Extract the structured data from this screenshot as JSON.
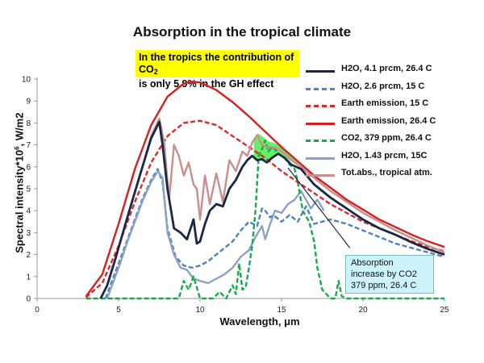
{
  "title": "Absorption in the tropical climate",
  "callout": {
    "text_main": "In the tropics the contribution of CO",
    "text_sub": "2",
    "text_rest": "is only 5.9% in the GH effect"
  },
  "axes": {
    "ylabel_main": "Spectral intensity*10",
    "ylabel_sup": "6",
    "ylabel_rest": ", W/m2",
    "xlabel": "Wavelength, μm"
  },
  "annotation": {
    "lines": [
      "Absorption",
      "increase by CO2",
      "379 ppm, 26.4 C"
    ]
  },
  "chart_data": {
    "type": "line",
    "xlim": [
      0,
      25
    ],
    "ylim": [
      0,
      10
    ],
    "xticks": [
      0,
      5,
      10,
      15,
      20,
      25
    ],
    "yticks": [
      0,
      1,
      2,
      3,
      4,
      5,
      6,
      7,
      8,
      9,
      10
    ],
    "grid": false,
    "legend_position": "right",
    "series": [
      {
        "name": "H2O, 4.1 prcm, 26.4 C",
        "color": "#1a2746",
        "style": "solid",
        "x": [
          3.9,
          4.3,
          4.8,
          5.5,
          6.3,
          7.0,
          7.5,
          7.7,
          8.0,
          8.4,
          8.8,
          9.2,
          9.6,
          9.8,
          10.0,
          10.3,
          10.6,
          11.0,
          11.4,
          11.8,
          12.2,
          12.6,
          12.9,
          13.2,
          13.5,
          13.8,
          14.1,
          14.4,
          14.8,
          15.2,
          15.6,
          16.2,
          17.0,
          18.0,
          19.0,
          20.0,
          21.0,
          22.0,
          23.0,
          24.0,
          25.0
        ],
        "y": [
          0.0,
          0.6,
          1.8,
          3.6,
          5.6,
          7.3,
          8.05,
          7.0,
          5.0,
          3.2,
          3.0,
          2.7,
          3.6,
          2.5,
          2.6,
          3.4,
          4.0,
          4.3,
          4.2,
          5.0,
          5.4,
          6.0,
          6.3,
          6.5,
          6.3,
          6.35,
          6.2,
          6.4,
          6.6,
          6.4,
          6.1,
          5.9,
          5.2,
          4.6,
          4.1,
          3.6,
          3.2,
          2.9,
          2.55,
          2.25,
          2.0
        ]
      },
      {
        "name": "H2O, 2.6 prcm, 15 C",
        "color": "#4f81bd",
        "style": "dashed",
        "x": [
          4.2,
          4.6,
          5.0,
          5.5,
          6.0,
          6.5,
          7.0,
          7.4,
          7.7,
          8.0,
          8.5,
          9.0,
          9.5,
          10.0,
          10.5,
          11.0,
          11.5,
          12.0,
          12.5,
          13.0,
          13.5,
          13.8,
          14.0,
          14.3,
          14.5,
          15.0,
          15.5,
          16.0,
          16.5,
          17.0,
          18.0,
          19.0,
          20.0,
          21.0,
          22.0,
          23.0,
          24.0,
          25.0
        ],
        "y": [
          0.0,
          0.8,
          1.6,
          2.6,
          3.6,
          4.6,
          5.4,
          5.9,
          5.3,
          3.2,
          1.9,
          1.5,
          1.4,
          1.5,
          1.7,
          2.0,
          2.3,
          2.6,
          3.1,
          3.5,
          3.3,
          4.1,
          4.0,
          3.7,
          3.8,
          3.5,
          3.8,
          3.5,
          4.2,
          3.4,
          3.6,
          3.4,
          3.1,
          2.8,
          2.5,
          2.3,
          2.1,
          1.9
        ]
      },
      {
        "name": "Earth emission, 15 C",
        "color": "#d92b2b",
        "style": "dashed",
        "x": [
          3.0,
          4.0,
          5.0,
          6.0,
          7.0,
          8.0,
          9.0,
          10.0,
          11.0,
          12.0,
          13.0,
          14.0,
          15.0,
          16.0,
          17.0,
          18.0,
          19.0,
          20.0,
          21.0,
          22.0,
          23.0,
          24.0,
          25.0
        ],
        "y": [
          0.05,
          0.7,
          2.4,
          4.4,
          6.2,
          7.4,
          8.0,
          8.1,
          7.9,
          7.4,
          6.9,
          6.4,
          5.8,
          5.3,
          4.8,
          4.3,
          3.9,
          3.5,
          3.2,
          2.9,
          2.6,
          2.35,
          2.15
        ]
      },
      {
        "name": "Earth emission, 26.4 C",
        "color": "#d42020",
        "style": "solid",
        "x": [
          3.0,
          4.0,
          5.0,
          6.0,
          7.0,
          8.0,
          9.0,
          9.5,
          10.0,
          11.0,
          12.0,
          13.0,
          14.0,
          15.0,
          16.0,
          17.0,
          18.0,
          19.0,
          20.0,
          21.0,
          22.0,
          23.0,
          24.0,
          25.0
        ],
        "y": [
          0.1,
          1.1,
          3.4,
          5.9,
          7.9,
          9.2,
          9.8,
          9.88,
          9.85,
          9.5,
          8.95,
          8.3,
          7.6,
          6.9,
          6.25,
          5.6,
          5.05,
          4.5,
          4.05,
          3.6,
          3.25,
          2.9,
          2.6,
          2.35
        ]
      },
      {
        "name": "CO2, 379 ppm, 26.4 C",
        "color": "#1aa84a",
        "style": "dashed",
        "x": [
          3.0,
          8.7,
          9.0,
          9.3,
          9.6,
          10.0,
          10.4,
          10.8,
          11.2,
          11.6,
          12.0,
          12.2,
          12.4,
          12.6,
          12.8,
          13.0,
          13.2,
          13.4,
          13.6,
          13.8,
          14.0,
          14.2,
          14.4,
          14.6,
          14.8,
          15.0,
          15.2,
          15.5,
          15.8,
          16.0,
          16.3,
          16.7,
          17.0,
          17.2,
          17.5,
          18.0,
          18.3,
          18.5,
          18.7,
          19.0,
          25.0
        ],
        "y": [
          0.0,
          0.0,
          0.8,
          0.4,
          1.0,
          0.0,
          0.0,
          0.0,
          0.3,
          0.0,
          0.6,
          0.2,
          1.6,
          0.4,
          0.5,
          1.4,
          2.4,
          4.0,
          6.5,
          6.8,
          7.2,
          6.7,
          6.9,
          6.8,
          6.6,
          6.5,
          6.4,
          6.1,
          5.9,
          5.3,
          4.0,
          3.5,
          2.6,
          1.4,
          0.4,
          0.0,
          0.0,
          0.8,
          0.1,
          0.0,
          0.0
        ]
      },
      {
        "name": "H2O, 1.43 prcm, 15C",
        "color": "#8ba2c4",
        "style": "solid",
        "x": [
          4.3,
          4.7,
          5.1,
          5.5,
          6.0,
          6.5,
          7.0,
          7.4,
          7.7,
          8.0,
          8.4,
          8.8,
          9.2,
          9.6,
          10.0,
          10.5,
          11.0,
          11.5,
          12.0,
          12.5,
          13.0,
          13.4,
          13.8,
          14.0,
          14.3,
          14.6,
          15.0,
          15.4,
          15.8,
          16.2,
          16.8,
          17.2,
          17.6
        ],
        "y": [
          0.0,
          0.8,
          1.6,
          2.5,
          3.5,
          4.5,
          5.3,
          5.8,
          5.5,
          3.0,
          2.0,
          1.4,
          1.3,
          0.9,
          0.8,
          0.7,
          0.9,
          1.1,
          1.4,
          1.9,
          2.2,
          2.8,
          3.3,
          2.7,
          3.4,
          4.0,
          3.9,
          4.3,
          4.5,
          4.9,
          4.1,
          4.5,
          4.0
        ]
      },
      {
        "name": "Tot.abs., tropical atm.",
        "color": "#c88f8f",
        "style": "solid",
        "x": [
          3.9,
          4.3,
          4.8,
          5.5,
          6.3,
          7.0,
          7.5,
          7.8,
          8.1,
          8.4,
          8.7,
          9.0,
          9.3,
          9.6,
          9.8,
          10.0,
          10.3,
          10.6,
          11.0,
          11.4,
          11.8,
          12.2,
          12.6,
          12.9,
          13.2,
          13.5,
          13.8,
          14.1,
          14.4,
          14.8,
          15.2,
          15.6,
          16.2,
          17.0,
          18.0,
          19.0,
          20.0,
          21.0,
          22.0,
          23.0,
          24.0,
          25.0
        ],
        "y": [
          0.0,
          0.6,
          1.8,
          3.6,
          5.6,
          7.4,
          8.2,
          7.1,
          4.5,
          7.0,
          6.5,
          5.6,
          6.2,
          5.2,
          5.0,
          3.6,
          5.6,
          4.3,
          5.7,
          4.4,
          6.3,
          5.8,
          6.7,
          6.5,
          7.1,
          7.45,
          7.0,
          6.9,
          6.9,
          6.8,
          6.6,
          6.3,
          6.0,
          5.5,
          4.9,
          4.4,
          3.9,
          3.5,
          3.1,
          2.75,
          2.4,
          2.1
        ]
      }
    ],
    "fill_between": {
      "name": "CO2 absorption increase",
      "color": "#66ee66",
      "x": [
        13.3,
        13.6,
        13.9,
        14.2,
        14.5,
        14.8,
        15.1,
        15.4,
        15.8,
        16.1
      ],
      "upper": [
        7.2,
        7.5,
        7.35,
        7.15,
        7.1,
        7.0,
        6.85,
        6.7,
        6.4,
        6.1
      ],
      "lower": [
        6.5,
        6.3,
        6.35,
        6.3,
        6.45,
        6.6,
        6.45,
        6.35,
        6.15,
        6.0
      ]
    }
  }
}
